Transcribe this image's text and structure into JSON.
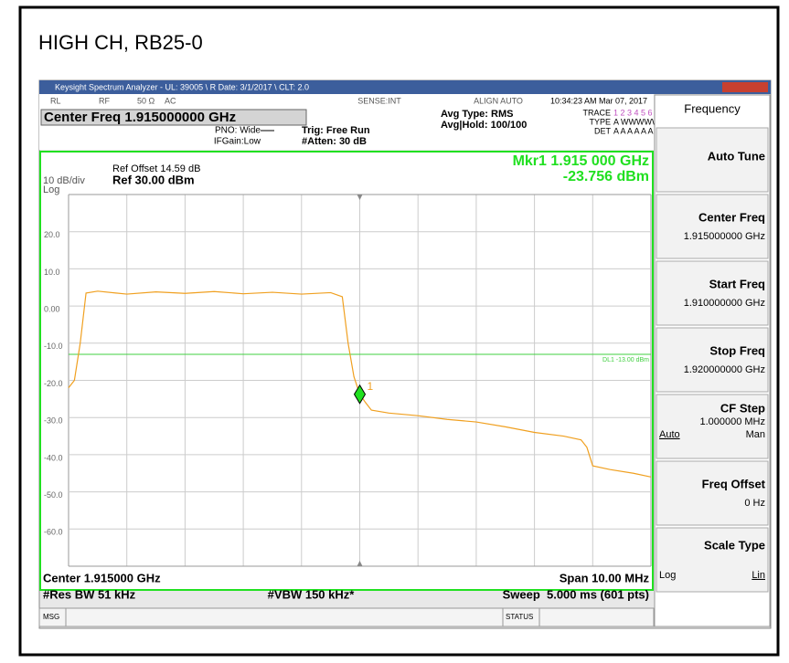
{
  "page_title": "HIGH CH, RB25-0",
  "window_title": "Keysight Spectrum Analyzer - UL: 39005 \\ R Date: 3/1/2017 \\ CLT: 2.0",
  "status_row": {
    "rl": "RL",
    "rf": "RF",
    "impedance": "50 Ω",
    "coupling": "AC",
    "sense": "SENSE:INT",
    "align": "ALIGN AUTO",
    "time": "10:34:23 AM Mar 07, 2017"
  },
  "settings": {
    "center_freq": "Center Freq 1.915000000 GHz",
    "pno": "PNO: Wide",
    "ifgain": "IFGain:Low",
    "trig": "Trig: Free Run",
    "atten": "#Atten: 30 dB",
    "avg_type": "Avg Type: RMS",
    "avg_hold": "Avg|Hold: 100/100",
    "trace_label": "TRACE",
    "trace_nums": "1 2 3 4 5 6",
    "type_label": "TYPE",
    "type_val": "A WWWWWW",
    "det_label": "DET",
    "det_val": "A A A A A A"
  },
  "chart_data": {
    "type": "line",
    "ref_offset": "Ref Offset 14.59 dB",
    "scale": "10 dB/div",
    "ref_level": "Ref 30.00 dBm",
    "scale_type": "Log",
    "marker_freq": "Mkr1 1.915 000 GHz",
    "marker_level": "-23.756 dBm",
    "marker_name": "1",
    "marker": {
      "x": 1.915,
      "y": -23.756
    },
    "display_line": {
      "label": "DL1 -13.00 dBm",
      "value": -13
    },
    "x": [
      1.91,
      1.9101,
      1.9102,
      1.9103,
      1.9105,
      1.911,
      1.9115,
      1.912,
      1.9125,
      1.913,
      1.9135,
      1.914,
      1.9145,
      1.9147,
      1.9148,
      1.9149,
      1.915,
      1.9151,
      1.9152,
      1.9155,
      1.916,
      1.9165,
      1.917,
      1.9175,
      1.918,
      1.9185,
      1.9188,
      1.9189,
      1.919,
      1.9193,
      1.9197,
      1.92
    ],
    "series": [
      {
        "color": "#f0a020",
        "values": [
          -22,
          -20,
          -10,
          3.5,
          4,
          3.2,
          3.8,
          3.4,
          3.9,
          3.3,
          3.7,
          3.2,
          3.6,
          2.5,
          -10,
          -19,
          -23.756,
          -26,
          -28,
          -28.8,
          -29.5,
          -30.5,
          -31.2,
          -32.5,
          -34,
          -35,
          -36,
          -38,
          -43,
          -44,
          -45,
          -46
        ]
      }
    ],
    "xlim": [
      1.91,
      1.92
    ],
    "ylim": [
      -70,
      30
    ],
    "yticks": [
      {
        "value": 20,
        "label": "20.0"
      },
      {
        "value": 10,
        "label": "10.0"
      },
      {
        "value": 0,
        "label": "0.00"
      },
      {
        "value": -10,
        "label": "-10.0"
      },
      {
        "value": -20,
        "label": "-20.0"
      },
      {
        "value": -30,
        "label": "-30.0"
      },
      {
        "value": -40,
        "label": "-40.0"
      },
      {
        "value": -50,
        "label": "-50.0"
      },
      {
        "value": -60,
        "label": "-60.0"
      }
    ],
    "footer": {
      "center": "Center 1.915000 GHz",
      "span": "Span 10.00 MHz",
      "rbw": "#Res BW 51 kHz",
      "vbw": "#VBW 150 kHz*",
      "sweep": "Sweep  5.000 ms (601 pts)"
    }
  },
  "menu": {
    "title": "Frequency",
    "items": [
      {
        "label": "Auto Tune"
      },
      {
        "label": "Center Freq",
        "value": "1.915000000 GHz"
      },
      {
        "label": "Start Freq",
        "value": "1.910000000 GHz"
      },
      {
        "label": "Stop Freq",
        "value": "1.920000000 GHz"
      },
      {
        "label": "CF Step",
        "value": "1.000000 MHz",
        "left": "Auto",
        "right": "Man"
      },
      {
        "label": "Freq Offset",
        "value": "0 Hz"
      },
      {
        "label": "Scale Type",
        "left": "Log",
        "right": "Lin"
      }
    ]
  },
  "status_bar": {
    "msg": "MSG",
    "status": "STATUS"
  }
}
